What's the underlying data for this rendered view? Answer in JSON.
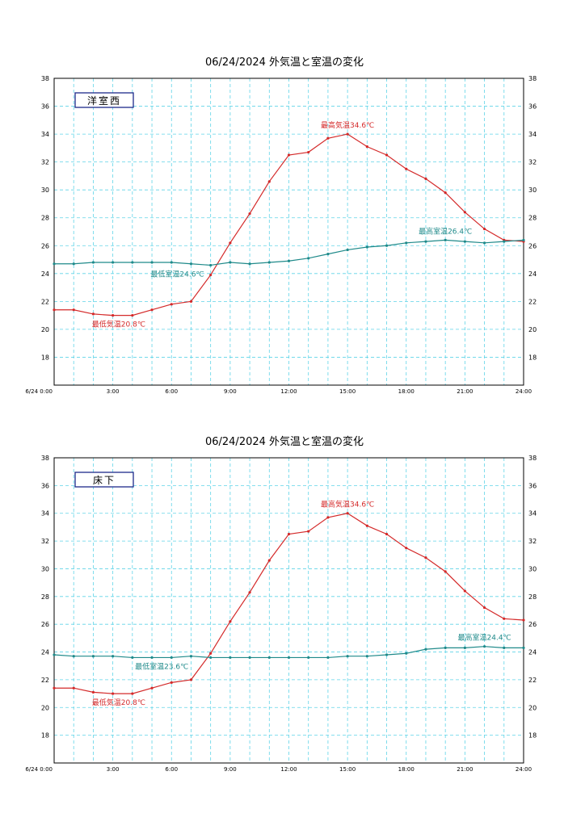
{
  "chart_data": [
    {
      "type": "line",
      "title": "06/24/2024 外気温と室温の変化",
      "location_label": "洋室西",
      "x_start_label": "6/24 0:00",
      "x_tick_labels": [
        "3:00",
        "6:00",
        "9:00",
        "12:00",
        "15:00",
        "18:00",
        "21:00",
        "24:00"
      ],
      "y_tick_labels": [
        "18",
        "20",
        "22",
        "24",
        "26",
        "28",
        "30",
        "32",
        "34",
        "36",
        "38"
      ],
      "ylim": [
        16,
        38
      ],
      "xlim": [
        0,
        24
      ],
      "grid": true,
      "x": [
        0,
        1,
        2,
        3,
        4,
        5,
        6,
        7,
        8,
        9,
        10,
        11,
        12,
        13,
        14,
        15,
        16,
        17,
        18,
        19,
        20,
        21,
        22,
        23,
        24
      ],
      "series": [
        {
          "key": "outdoor",
          "color": "#d42a2a",
          "values": [
            21.4,
            21.4,
            21.1,
            21.0,
            21.0,
            21.4,
            21.8,
            22.0,
            23.9,
            26.2,
            28.3,
            30.6,
            32.5,
            32.7,
            33.7,
            34.0,
            33.1,
            32.5,
            31.5,
            30.8,
            29.8,
            28.4,
            27.2,
            26.4,
            26.3
          ]
        },
        {
          "key": "indoor",
          "color": "#1f8a8a",
          "values": [
            24.7,
            24.7,
            24.8,
            24.8,
            24.8,
            24.8,
            24.8,
            24.7,
            24.6,
            24.8,
            24.7,
            24.8,
            24.9,
            25.1,
            25.4,
            25.7,
            25.9,
            26.0,
            26.2,
            26.3,
            26.4,
            26.3,
            26.2,
            26.3,
            26.4
          ]
        }
      ],
      "annotations": [
        {
          "text": "最高気温34.6℃",
          "x": 15,
          "y": 34.0,
          "color": "#d42a2a",
          "anchor": "above"
        },
        {
          "text": "最低気温20.8℃",
          "x": 3.3,
          "y": 21.0,
          "color": "#d42a2a",
          "anchor": "below"
        },
        {
          "text": "最高室温26.4℃",
          "x": 20,
          "y": 26.4,
          "color": "#1f8a8a",
          "anchor": "above"
        },
        {
          "text": "最低室温24.6℃",
          "x": 6.3,
          "y": 24.6,
          "color": "#1f8a8a",
          "anchor": "below"
        }
      ]
    },
    {
      "type": "line",
      "title": "06/24/2024 外気温と室温の変化",
      "location_label": "床下",
      "x_start_label": "6/24 0:00",
      "x_tick_labels": [
        "3:00",
        "6:00",
        "9:00",
        "12:00",
        "15:00",
        "18:00",
        "21:00",
        "24:00"
      ],
      "y_tick_labels": [
        "18",
        "20",
        "22",
        "24",
        "26",
        "28",
        "30",
        "32",
        "34",
        "36",
        "38"
      ],
      "ylim": [
        16,
        38
      ],
      "xlim": [
        0,
        24
      ],
      "grid": true,
      "x": [
        0,
        1,
        2,
        3,
        4,
        5,
        6,
        7,
        8,
        9,
        10,
        11,
        12,
        13,
        14,
        15,
        16,
        17,
        18,
        19,
        20,
        21,
        22,
        23,
        24
      ],
      "series": [
        {
          "key": "outdoor",
          "color": "#d42a2a",
          "values": [
            21.4,
            21.4,
            21.1,
            21.0,
            21.0,
            21.4,
            21.8,
            22.0,
            23.9,
            26.2,
            28.3,
            30.6,
            32.5,
            32.7,
            33.7,
            34.0,
            33.1,
            32.5,
            31.5,
            30.8,
            29.8,
            28.4,
            27.2,
            26.4,
            26.3
          ]
        },
        {
          "key": "underfloor",
          "color": "#1f8a8a",
          "values": [
            23.8,
            23.7,
            23.7,
            23.7,
            23.6,
            23.6,
            23.6,
            23.7,
            23.6,
            23.6,
            23.6,
            23.6,
            23.6,
            23.6,
            23.6,
            23.7,
            23.7,
            23.8,
            23.9,
            24.2,
            24.3,
            24.3,
            24.4,
            24.3,
            24.3
          ]
        }
      ],
      "annotations": [
        {
          "text": "最高気温34.6℃",
          "x": 15,
          "y": 34.0,
          "color": "#d42a2a",
          "anchor": "above"
        },
        {
          "text": "最低気温20.8℃",
          "x": 3.3,
          "y": 21.0,
          "color": "#d42a2a",
          "anchor": "below"
        },
        {
          "text": "最高室温24.4℃",
          "x": 22,
          "y": 24.4,
          "color": "#1f8a8a",
          "anchor": "above"
        },
        {
          "text": "最低室温23.6℃",
          "x": 5.5,
          "y": 23.6,
          "color": "#1f8a8a",
          "anchor": "below"
        }
      ]
    }
  ]
}
